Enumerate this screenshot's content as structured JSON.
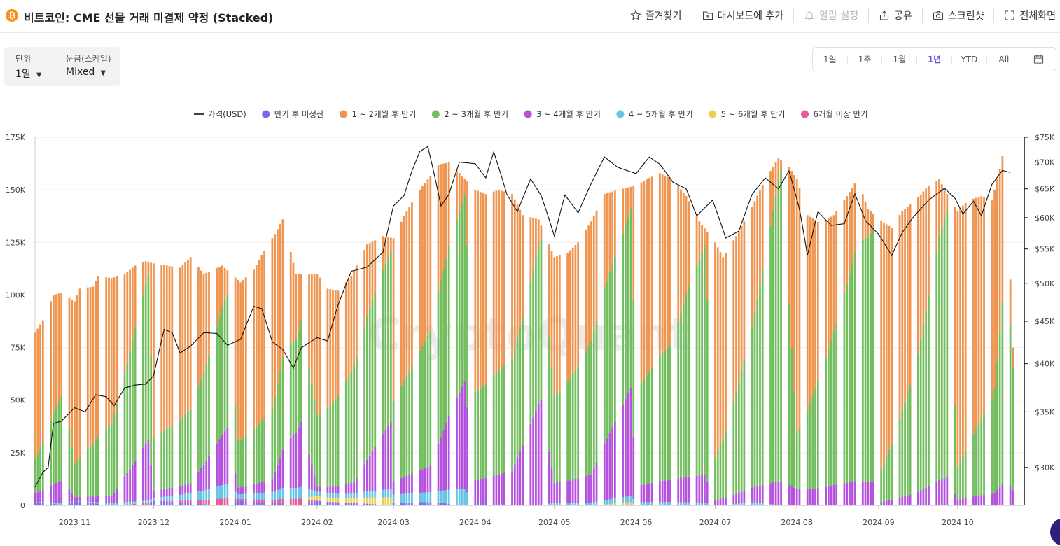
{
  "header": {
    "coin_symbol": "₿",
    "title": "비트코인: CME 선물 거래 미결제 약정 (Stacked)",
    "actions": [
      {
        "label": "즐겨찾기",
        "icon": "star-icon",
        "enabled": true
      },
      {
        "label": "대시보드에 추가",
        "icon": "dashboard-add-icon",
        "enabled": true
      },
      {
        "label": "알람 설정",
        "icon": "bell-icon",
        "enabled": false
      },
      {
        "label": "공유",
        "icon": "share-icon",
        "enabled": true
      },
      {
        "label": "스크린샷",
        "icon": "camera-icon",
        "enabled": true
      },
      {
        "label": "전체화면",
        "icon": "fullscreen-icon",
        "enabled": true
      }
    ]
  },
  "controls": {
    "unit_label": "단위",
    "unit_value": "1일",
    "scale_label": "눈금(스케일)",
    "scale_value": "Mixed"
  },
  "range": {
    "buttons": [
      "1일",
      "1주",
      "1월",
      "1년",
      "YTD",
      "All"
    ],
    "active": "1년",
    "calendar_icon": "calendar-icon"
  },
  "chart_data": {
    "type": "bar",
    "stacked": true,
    "watermark": "CryptoQuant",
    "legend_position": "top-center",
    "grid": true,
    "left_axis": {
      "ticks": [
        0,
        25000,
        50000,
        75000,
        100000,
        125000,
        150000,
        175000
      ],
      "tick_labels": [
        "0",
        "25K",
        "50K",
        "75K",
        "100K",
        "125K",
        "150K",
        "175K"
      ],
      "ylim": [
        0,
        175000
      ]
    },
    "right_axis": {
      "scale": "log",
      "ticks": [
        30000,
        35000,
        40000,
        45000,
        50000,
        55000,
        60000,
        65000,
        70000,
        75000
      ],
      "tick_labels": [
        "$30K",
        "$35K",
        "$40K",
        "$45K",
        "$50K",
        "$55K",
        "$60K",
        "$65K",
        "$70K",
        "$75K"
      ],
      "ylim": [
        27000,
        75000
      ]
    },
    "x_range": [
      "2023-10-17",
      "2024-10-26"
    ],
    "x_ticks": [
      {
        "date": "2023-11-01",
        "label": "2023 11"
      },
      {
        "date": "2023-12-01",
        "label": "2023 12"
      },
      {
        "date": "2024-01-01",
        "label": "2024 01"
      },
      {
        "date": "2024-02-01",
        "label": "2024 02"
      },
      {
        "date": "2024-03-01",
        "label": "2024 03"
      },
      {
        "date": "2024-04-01",
        "label": "2024 04"
      },
      {
        "date": "2024-05-01",
        "label": "2024 05"
      },
      {
        "date": "2024-06-01",
        "label": "2024 06"
      },
      {
        "date": "2024-07-01",
        "label": "2024 07"
      },
      {
        "date": "2024-08-01",
        "label": "2024 08"
      },
      {
        "date": "2024-09-01",
        "label": "2024 09"
      },
      {
        "date": "2024-10-01",
        "label": "2024 10"
      }
    ],
    "legend": [
      {
        "name": "가격(USD)",
        "color": "#111111",
        "kind": "line"
      },
      {
        "name": "만기 후 미정산",
        "color": "#7b68ee",
        "kind": "dot"
      },
      {
        "name": "1 ~ 2개월 후 만기",
        "color": "#ef9550",
        "kind": "dot"
      },
      {
        "name": "2 ~ 3개월 후 만기",
        "color": "#72bd5e",
        "kind": "dot"
      },
      {
        "name": "3 ~ 4개월 후 만기",
        "color": "#b452dd",
        "kind": "dot"
      },
      {
        "name": "4 ~ 5개월 후 만기",
        "color": "#66c4e6",
        "kind": "dot"
      },
      {
        "name": "5 ~ 6개월 후 만기",
        "color": "#f0cd50",
        "kind": "dot"
      },
      {
        "name": "6개월 이상 만기",
        "color": "#e25c9d",
        "kind": "dot"
      }
    ],
    "bar_totals_points": [
      [
        "2023-10-17",
        82000
      ],
      [
        "2023-10-20",
        88000
      ],
      [
        "2023-10-24",
        100000
      ],
      [
        "2023-10-27",
        101000
      ],
      [
        "2023-11-01",
        97000
      ],
      [
        "2023-11-03",
        103000
      ],
      [
        "2023-11-08",
        104000
      ],
      [
        "2023-11-10",
        109000
      ],
      [
        "2023-11-15",
        108000
      ],
      [
        "2023-11-20",
        110000
      ],
      [
        "2023-11-24",
        114000
      ],
      [
        "2023-11-28",
        116000
      ],
      [
        "2023-12-01",
        115000
      ],
      [
        "2023-12-06",
        114000
      ],
      [
        "2023-12-11",
        113000
      ],
      [
        "2023-12-15",
        118000
      ],
      [
        "2023-12-20",
        110000
      ],
      [
        "2023-12-27",
        114000
      ],
      [
        "2024-01-03",
        106000
      ],
      [
        "2024-01-08",
        112000
      ],
      [
        "2024-01-11",
        119000
      ],
      [
        "2024-01-16",
        129000
      ],
      [
        "2024-01-19",
        136000
      ],
      [
        "2024-01-24",
        110000
      ],
      [
        "2024-02-01",
        110000
      ],
      [
        "2024-02-05",
        103000
      ],
      [
        "2024-02-09",
        102000
      ],
      [
        "2024-02-14",
        109000
      ],
      [
        "2024-02-20",
        124000
      ],
      [
        "2024-02-26",
        128000
      ],
      [
        "2024-03-01",
        127000
      ],
      [
        "2024-03-06",
        140000
      ],
      [
        "2024-03-11",
        150000
      ],
      [
        "2024-03-14",
        155000
      ],
      [
        "2024-03-18",
        162000
      ],
      [
        "2024-03-22",
        163000
      ],
      [
        "2024-03-26",
        158000
      ],
      [
        "2024-04-01",
        150000
      ],
      [
        "2024-04-05",
        148000
      ],
      [
        "2024-04-10",
        150000
      ],
      [
        "2024-04-15",
        148000
      ],
      [
        "2024-04-19",
        138000
      ],
      [
        "2024-04-25",
        136000
      ],
      [
        "2024-05-01",
        118000
      ],
      [
        "2024-05-06",
        120000
      ],
      [
        "2024-05-10",
        125000
      ],
      [
        "2024-05-15",
        135000
      ],
      [
        "2024-05-20",
        148000
      ],
      [
        "2024-05-25",
        150000
      ],
      [
        "2024-06-01",
        152000
      ],
      [
        "2024-06-05",
        155000
      ],
      [
        "2024-06-10",
        158000
      ],
      [
        "2024-06-15",
        155000
      ],
      [
        "2024-06-20",
        147000
      ],
      [
        "2024-06-25",
        135000
      ],
      [
        "2024-07-01",
        125000
      ],
      [
        "2024-07-04",
        118000
      ],
      [
        "2024-07-09",
        128000
      ],
      [
        "2024-07-15",
        142000
      ],
      [
        "2024-07-20",
        155000
      ],
      [
        "2024-07-25",
        165000
      ],
      [
        "2024-07-28",
        163000
      ],
      [
        "2024-08-01",
        155000
      ],
      [
        "2024-08-05",
        138000
      ],
      [
        "2024-08-10",
        134000
      ],
      [
        "2024-08-15",
        138000
      ],
      [
        "2024-08-20",
        147000
      ],
      [
        "2024-08-24",
        155000
      ],
      [
        "2024-08-28",
        141000
      ],
      [
        "2024-09-01",
        136000
      ],
      [
        "2024-09-06",
        132000
      ],
      [
        "2024-09-10",
        140000
      ],
      [
        "2024-09-15",
        145000
      ],
      [
        "2024-09-20",
        152000
      ],
      [
        "2024-09-24",
        155000
      ],
      [
        "2024-09-27",
        148000
      ],
      [
        "2024-10-01",
        140000
      ],
      [
        "2024-10-05",
        145000
      ],
      [
        "2024-10-10",
        147000
      ],
      [
        "2024-10-14",
        145000
      ],
      [
        "2024-10-17",
        160000
      ],
      [
        "2024-10-19",
        172000
      ],
      [
        "2024-10-22",
        75000
      ]
    ],
    "stack_share_points": [
      [
        "2023-10-17",
        [
          0.02,
          0.73,
          0.2,
          0.05,
          0.0,
          0.0,
          0.0
        ]
      ],
      [
        "2023-10-28",
        [
          0.0,
          0.46,
          0.42,
          0.11,
          0.01,
          0.0,
          0.0
        ]
      ],
      [
        "2023-11-01",
        [
          0.02,
          0.8,
          0.16,
          0.02,
          0.0,
          0.0,
          0.0
        ]
      ],
      [
        "2023-11-15",
        [
          0.0,
          0.64,
          0.32,
          0.03,
          0.01,
          0.0,
          0.0
        ]
      ],
      [
        "2023-11-29",
        [
          0.0,
          0.05,
          0.68,
          0.25,
          0.01,
          0.0,
          0.01
        ]
      ],
      [
        "2023-12-01",
        [
          0.02,
          0.72,
          0.22,
          0.03,
          0.01,
          0.0,
          0.0
        ]
      ],
      [
        "2023-12-15",
        [
          0.01,
          0.61,
          0.3,
          0.04,
          0.03,
          0.0,
          0.01
        ]
      ],
      [
        "2023-12-29",
        [
          0.0,
          0.1,
          0.57,
          0.24,
          0.06,
          0.0,
          0.03
        ]
      ],
      [
        "2024-01-02",
        [
          0.02,
          0.71,
          0.21,
          0.03,
          0.02,
          0.0,
          0.01
        ]
      ],
      [
        "2024-01-15",
        [
          0.01,
          0.64,
          0.26,
          0.05,
          0.03,
          0.0,
          0.01
        ]
      ],
      [
        "2024-01-26",
        [
          0.0,
          0.2,
          0.44,
          0.28,
          0.05,
          0.0,
          0.03
        ]
      ],
      [
        "2024-02-01",
        [
          0.02,
          0.61,
          0.31,
          0.02,
          0.02,
          0.02,
          0.0
        ]
      ],
      [
        "2024-02-15",
        [
          0.01,
          0.4,
          0.5,
          0.05,
          0.02,
          0.02,
          0.0
        ]
      ],
      [
        "2024-02-29",
        [
          0.0,
          0.05,
          0.64,
          0.25,
          0.03,
          0.03,
          0.0
        ]
      ],
      [
        "2024-03-01",
        [
          0.01,
          0.61,
          0.3,
          0.05,
          0.03,
          0.0,
          0.0
        ]
      ],
      [
        "2024-03-15",
        [
          0.01,
          0.47,
          0.41,
          0.08,
          0.03,
          0.0,
          0.0
        ]
      ],
      [
        "2024-03-28",
        [
          0.0,
          0.05,
          0.57,
          0.33,
          0.05,
          0.0,
          0.0
        ]
      ],
      [
        "2024-04-01",
        [
          0.01,
          0.64,
          0.28,
          0.07,
          0.0,
          0.0,
          0.0
        ]
      ],
      [
        "2024-04-15",
        [
          0.0,
          0.53,
          0.36,
          0.11,
          0.0,
          0.0,
          0.0
        ]
      ],
      [
        "2024-04-26",
        [
          0.0,
          0.05,
          0.57,
          0.38,
          0.0,
          0.0,
          0.0
        ]
      ],
      [
        "2024-05-01",
        [
          0.0,
          0.56,
          0.35,
          0.08,
          0.01,
          0.0,
          0.0
        ]
      ],
      [
        "2024-05-15",
        [
          0.0,
          0.42,
          0.47,
          0.1,
          0.01,
          0.0,
          0.0
        ]
      ],
      [
        "2024-05-30",
        [
          0.0,
          0.07,
          0.56,
          0.34,
          0.02,
          0.01,
          0.0
        ]
      ],
      [
        "2024-06-01",
        [
          0.0,
          0.64,
          0.3,
          0.05,
          0.01,
          0.0,
          0.0
        ]
      ],
      [
        "2024-06-15",
        [
          0.0,
          0.5,
          0.42,
          0.07,
          0.01,
          0.0,
          0.0
        ]
      ],
      [
        "2024-06-27",
        [
          0.0,
          0.06,
          0.83,
          0.1,
          0.01,
          0.0,
          0.0
        ]
      ],
      [
        "2024-07-01",
        [
          0.0,
          0.82,
          0.16,
          0.02,
          0.0,
          0.0,
          0.0
        ]
      ],
      [
        "2024-07-15",
        [
          0.0,
          0.4,
          0.54,
          0.05,
          0.01,
          0.0,
          0.0
        ]
      ],
      [
        "2024-07-26",
        [
          0.0,
          0.03,
          0.9,
          0.07,
          0.0,
          0.0,
          0.0
        ]
      ],
      [
        "2024-08-01",
        [
          0.0,
          0.78,
          0.17,
          0.05,
          0.0,
          0.0,
          0.0
        ]
      ],
      [
        "2024-08-15",
        [
          0.0,
          0.4,
          0.53,
          0.07,
          0.0,
          0.0,
          0.0
        ]
      ],
      [
        "2024-08-30",
        [
          0.0,
          0.05,
          0.87,
          0.08,
          0.0,
          0.0,
          0.0
        ]
      ],
      [
        "2024-09-01",
        [
          0.0,
          0.9,
          0.09,
          0.01,
          0.0,
          0.0,
          0.0
        ]
      ],
      [
        "2024-09-15",
        [
          0.0,
          0.55,
          0.41,
          0.04,
          0.0,
          0.0,
          0.0
        ]
      ],
      [
        "2024-09-27",
        [
          0.0,
          0.05,
          0.86,
          0.09,
          0.0,
          0.0,
          0.0
        ]
      ],
      [
        "2024-10-01",
        [
          0.0,
          0.87,
          0.11,
          0.02,
          0.0,
          0.0,
          0.0
        ]
      ],
      [
        "2024-10-15",
        [
          0.0,
          0.63,
          0.33,
          0.04,
          0.0,
          0.0,
          0.0
        ]
      ],
      [
        "2024-10-22",
        [
          0.0,
          0.13,
          0.78,
          0.09,
          0.0,
          0.0,
          0.0
        ]
      ]
    ],
    "price_points": [
      [
        "2023-10-17",
        28400
      ],
      [
        "2023-10-20",
        29600
      ],
      [
        "2023-10-22",
        30000
      ],
      [
        "2023-10-24",
        33900
      ],
      [
        "2023-10-27",
        34100
      ],
      [
        "2023-11-01",
        35400
      ],
      [
        "2023-11-05",
        35000
      ],
      [
        "2023-11-09",
        36700
      ],
      [
        "2023-11-13",
        36500
      ],
      [
        "2023-11-16",
        35600
      ],
      [
        "2023-11-20",
        37400
      ],
      [
        "2023-11-24",
        37700
      ],
      [
        "2023-11-28",
        37800
      ],
      [
        "2023-12-01",
        38700
      ],
      [
        "2023-12-05",
        44000
      ],
      [
        "2023-12-08",
        43600
      ],
      [
        "2023-12-11",
        41200
      ],
      [
        "2023-12-15",
        42000
      ],
      [
        "2023-12-20",
        43600
      ],
      [
        "2023-12-25",
        43500
      ],
      [
        "2023-12-29",
        42100
      ],
      [
        "2024-01-03",
        42800
      ],
      [
        "2024-01-08",
        46900
      ],
      [
        "2024-01-11",
        46600
      ],
      [
        "2024-01-15",
        42500
      ],
      [
        "2024-01-19",
        41600
      ],
      [
        "2024-01-23",
        39500
      ],
      [
        "2024-01-26",
        41800
      ],
      [
        "2024-02-01",
        43000
      ],
      [
        "2024-02-05",
        42600
      ],
      [
        "2024-02-09",
        47100
      ],
      [
        "2024-02-14",
        51700
      ],
      [
        "2024-02-20",
        52300
      ],
      [
        "2024-02-26",
        54500
      ],
      [
        "2024-03-01",
        62000
      ],
      [
        "2024-03-05",
        63800
      ],
      [
        "2024-03-08",
        68300
      ],
      [
        "2024-03-11",
        72100
      ],
      [
        "2024-03-14",
        73100
      ],
      [
        "2024-03-19",
        62000
      ],
      [
        "2024-03-22",
        64000
      ],
      [
        "2024-03-26",
        70000
      ],
      [
        "2024-04-01",
        69700
      ],
      [
        "2024-04-05",
        67000
      ],
      [
        "2024-04-08",
        72000
      ],
      [
        "2024-04-13",
        64000
      ],
      [
        "2024-04-17",
        61000
      ],
      [
        "2024-04-22",
        66800
      ],
      [
        "2024-04-26",
        63800
      ],
      [
        "2024-05-01",
        57000
      ],
      [
        "2024-05-05",
        63900
      ],
      [
        "2024-05-10",
        60800
      ],
      [
        "2024-05-15",
        66000
      ],
      [
        "2024-05-20",
        71000
      ],
      [
        "2024-05-25",
        69000
      ],
      [
        "2024-06-01",
        67800
      ],
      [
        "2024-06-06",
        71000
      ],
      [
        "2024-06-10",
        69600
      ],
      [
        "2024-06-15",
        66200
      ],
      [
        "2024-06-20",
        65000
      ],
      [
        "2024-06-24",
        60300
      ],
      [
        "2024-06-30",
        63000
      ],
      [
        "2024-07-05",
        56700
      ],
      [
        "2024-07-10",
        57800
      ],
      [
        "2024-07-15",
        64000
      ],
      [
        "2024-07-20",
        67000
      ],
      [
        "2024-07-25",
        65000
      ],
      [
        "2024-07-29",
        68300
      ],
      [
        "2024-08-02",
        61400
      ],
      [
        "2024-08-05",
        54000
      ],
      [
        "2024-08-09",
        61000
      ],
      [
        "2024-08-14",
        58700
      ],
      [
        "2024-08-19",
        59000
      ],
      [
        "2024-08-23",
        64100
      ],
      [
        "2024-08-27",
        59500
      ],
      [
        "2024-09-01",
        57300
      ],
      [
        "2024-09-06",
        54000
      ],
      [
        "2024-09-10",
        57600
      ],
      [
        "2024-09-14",
        60000
      ],
      [
        "2024-09-20",
        63000
      ],
      [
        "2024-09-26",
        65100
      ],
      [
        "2024-09-30",
        63300
      ],
      [
        "2024-10-03",
        60600
      ],
      [
        "2024-10-07",
        62800
      ],
      [
        "2024-10-10",
        60300
      ],
      [
        "2024-10-14",
        65800
      ],
      [
        "2024-10-18",
        68400
      ],
      [
        "2024-10-21",
        68000
      ]
    ]
  }
}
